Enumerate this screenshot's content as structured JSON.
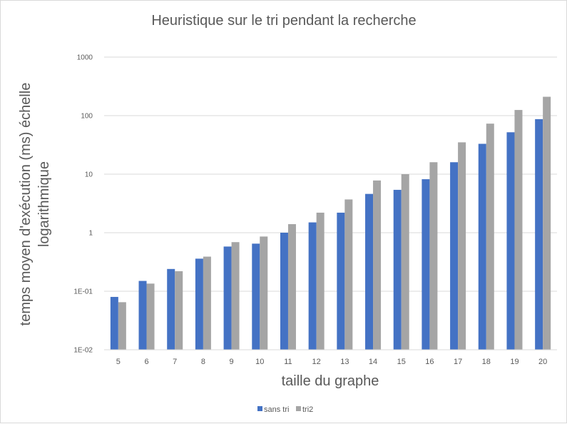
{
  "chart_data": {
    "type": "bar",
    "title": "Heuristique sur le tri pendant la recherche",
    "xlabel": "taille du graphe",
    "ylabel_lines": [
      "temps moyen d'exécution (ms) échelle",
      "logarithmique"
    ],
    "yscale": "log",
    "ylim": [
      0.01,
      1000
    ],
    "yticks": [
      {
        "value": 0.01,
        "label": "1E-02"
      },
      {
        "value": 0.1,
        "label": "1E-01"
      },
      {
        "value": 1,
        "label": "1"
      },
      {
        "value": 10,
        "label": "10"
      },
      {
        "value": 100,
        "label": "100"
      },
      {
        "value": 1000,
        "label": "1000"
      }
    ],
    "categories": [
      "5",
      "6",
      "7",
      "8",
      "9",
      "10",
      "11",
      "12",
      "13",
      "14",
      "15",
      "16",
      "17",
      "18",
      "19",
      "20"
    ],
    "series": [
      {
        "name": "sans tri",
        "color": "#4472c4",
        "values": [
          0.08,
          0.15,
          0.24,
          0.36,
          0.58,
          0.65,
          1.0,
          1.5,
          2.2,
          4.6,
          5.4,
          8.2,
          16,
          33,
          52,
          87
        ]
      },
      {
        "name": "tri2",
        "color": "#a5a5a5",
        "values": [
          0.065,
          0.135,
          0.22,
          0.39,
          0.69,
          0.86,
          1.4,
          2.2,
          3.7,
          7.8,
          10,
          16,
          35,
          73,
          125,
          210
        ]
      }
    ],
    "grid": true,
    "legend_position": "bottom"
  }
}
